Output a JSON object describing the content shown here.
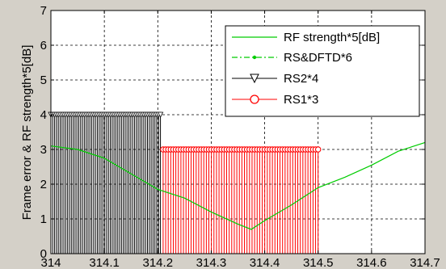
{
  "chart_data": {
    "type": "line",
    "title": "",
    "xlabel": "",
    "ylabel": "Frame error & RF strength*5[dB]",
    "xlim": [
      314,
      314.7
    ],
    "ylim": [
      0,
      7
    ],
    "x_ticks": [
      "314",
      "314.1",
      "314.2",
      "314.3",
      "314.4",
      "314.5",
      "314.6",
      "314.7"
    ],
    "y_ticks": [
      "0",
      "1",
      "2",
      "3",
      "4",
      "5",
      "6",
      "7"
    ],
    "grid": true,
    "legend_position": "top-right",
    "series": [
      {
        "name": "RF strength*5[dB]",
        "style": "line",
        "color": "#00cc00",
        "x": [
          314,
          314.05,
          314.1,
          314.15,
          314.2,
          314.25,
          314.3,
          314.35,
          314.375,
          314.4,
          314.45,
          314.5,
          314.55,
          314.6,
          314.65,
          314.7
        ],
        "y": [
          3.1,
          3.0,
          2.75,
          2.3,
          1.85,
          1.6,
          1.2,
          0.85,
          0.7,
          0.95,
          1.4,
          1.9,
          2.2,
          2.55,
          2.95,
          3.2
        ]
      },
      {
        "name": "RS&DFTD*6",
        "style": "dash-dot-marker",
        "color": "#00cc00",
        "x": [],
        "y": []
      },
      {
        "name": "RS2*4",
        "style": "stem-triangle",
        "color": "#000000",
        "x_range": [
          314.0,
          314.205
        ],
        "y": 4,
        "stem_count": 60
      },
      {
        "name": "RS1*3",
        "style": "stem-circle",
        "color": "#ff0000",
        "x_range": [
          314.21,
          314.5
        ],
        "y": 3,
        "stem_count": 62
      }
    ]
  }
}
